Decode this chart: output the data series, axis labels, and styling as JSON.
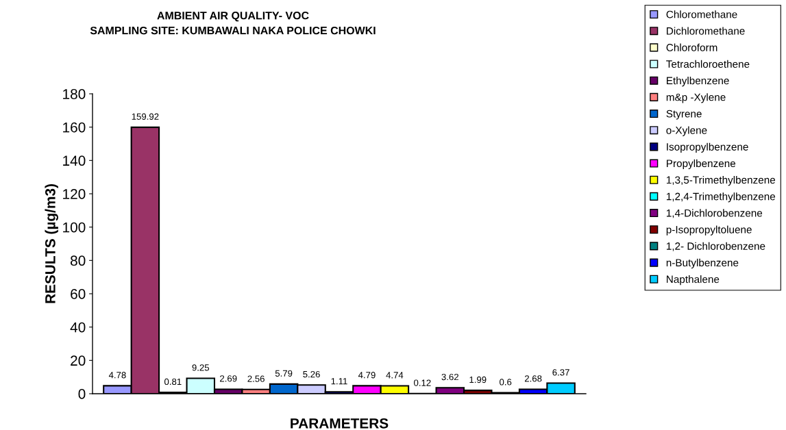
{
  "chart_data": {
    "type": "bar",
    "title": "AMBIENT AIR QUALITY- VOC\nSAMPLING SITE: KUMBAWALI NAKA POLICE CHOWKI",
    "xlabel": "PARAMETERS",
    "ylabel": "RESULTS (µg/m3)",
    "categories": [
      null
    ],
    "series": [
      {
        "name": "Chloromethane",
        "color": "#9999ff",
        "values": [
          4.78
        ]
      },
      {
        "name": "Dichloromethane",
        "color": "#993366",
        "values": [
          159.92
        ]
      },
      {
        "name": "Chloroform",
        "color": "#ffffcc",
        "values": [
          0.81
        ]
      },
      {
        "name": "Tetrachloroethene",
        "color": "#ccffff",
        "values": [
          9.25
        ]
      },
      {
        "name": "Ethylbenzene",
        "color": "#660066",
        "values": [
          2.69
        ]
      },
      {
        "name": "m&p -Xylene",
        "color": "#ff8080",
        "values": [
          2.56
        ]
      },
      {
        "name": "Styrene",
        "color": "#0066cc",
        "values": [
          5.79
        ]
      },
      {
        "name": "o-Xylene",
        "color": "#ccccff",
        "values": [
          5.26
        ]
      },
      {
        "name": "Isopropylbenzene",
        "color": "#000080",
        "values": [
          1.11
        ]
      },
      {
        "name": "Propylbenzene",
        "color": "#ff00ff",
        "values": [
          4.79
        ]
      },
      {
        "name": "1,3,5-Trimethylbenzene",
        "color": "#ffff00",
        "values": [
          4.74
        ]
      },
      {
        "name": "1,2,4-Trimethylbenzene",
        "color": "#00ffff",
        "values": [
          0.12
        ]
      },
      {
        "name": "1,4-Dichlorobenzene",
        "color": "#800080",
        "values": [
          3.62
        ]
      },
      {
        "name": "p-Isopropyltoluene",
        "color": "#800000",
        "values": [
          1.99
        ]
      },
      {
        "name": "1,2- Dichlorobenzene",
        "color": "#008080",
        "values": [
          0.6
        ]
      },
      {
        "name": "n-Butylbenzene",
        "color": "#0000ff",
        "values": [
          2.68
        ]
      },
      {
        "name": "Napthalene",
        "color": "#00ccff",
        "values": [
          6.37
        ]
      }
    ],
    "ylim": [
      0,
      180
    ],
    "yticks": [
      0,
      20,
      40,
      60,
      80,
      100,
      120,
      140,
      160,
      180
    ],
    "data_labels": true,
    "grid": false,
    "legend": "right"
  }
}
